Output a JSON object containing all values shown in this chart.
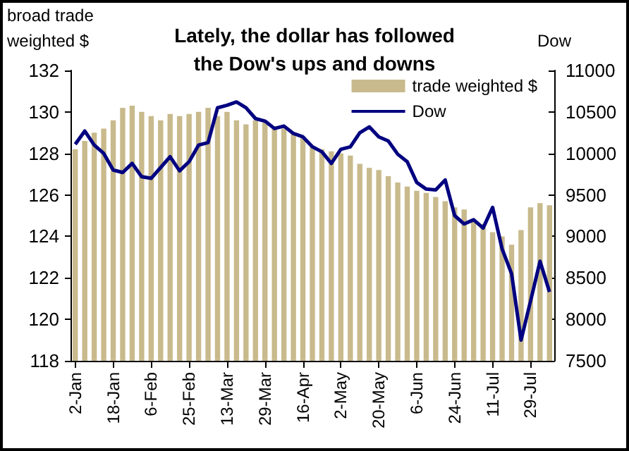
{
  "chart_data": {
    "type": "bar",
    "title": "Lately, the dollar has followed\nthe Dow's ups and downs",
    "ylabel": "broad trade\nweighted $",
    "y2label": "Dow",
    "categories": [
      "2-Jan",
      null,
      null,
      null,
      "18-Jan",
      null,
      null,
      null,
      "6-Feb",
      null,
      null,
      null,
      "25-Feb",
      null,
      null,
      null,
      "13-Mar",
      null,
      null,
      null,
      "29-Mar",
      null,
      null,
      null,
      "16-Apr",
      null,
      null,
      null,
      "2-May",
      null,
      null,
      null,
      "20-May",
      null,
      null,
      null,
      "6-Jun",
      null,
      null,
      null,
      "24-Jun",
      null,
      null,
      null,
      "11-Jul",
      null,
      null,
      null,
      "29-Jul",
      null,
      null
    ],
    "series": [
      {
        "name": "trade weighted $",
        "color": "#c8ba8c",
        "values": [
          128.2,
          128.6,
          129.0,
          129.2,
          129.6,
          130.2,
          130.3,
          130.0,
          129.8,
          129.6,
          129.9,
          129.8,
          129.9,
          130.0,
          130.2,
          129.8,
          130.0,
          129.6,
          129.4,
          129.6,
          129.5,
          129.3,
          129.2,
          129.0,
          128.8,
          128.3,
          128.2,
          128.1,
          128.0,
          127.9,
          127.5,
          127.3,
          127.2,
          126.9,
          126.6,
          126.4,
          126.2,
          126.1,
          125.9,
          125.7,
          125.4,
          125.3,
          124.8,
          124.6,
          124.2,
          124.0,
          123.6,
          124.3,
          125.4,
          125.6,
          125.5
        ]
      },
      {
        "name": "Dow",
        "type": "line",
        "axis": "y2",
        "color": "#000080",
        "values": [
          10110,
          10270,
          10100,
          10000,
          9800,
          9770,
          9880,
          9720,
          9700,
          9830,
          9960,
          9790,
          9900,
          10100,
          10130,
          10550,
          10580,
          10620,
          10550,
          10420,
          10390,
          10300,
          10330,
          10240,
          10200,
          10080,
          10020,
          9880,
          10050,
          10080,
          10250,
          10320,
          10200,
          10150,
          9990,
          9900,
          9650,
          9570,
          9560,
          9680,
          9250,
          9150,
          9200,
          9100,
          9350,
          8850,
          8550,
          7750,
          8220,
          8700,
          8330
        ]
      }
    ],
    "ylim": [
      118,
      132
    ],
    "yticks": [
      118,
      120,
      122,
      124,
      126,
      128,
      130,
      132
    ],
    "y2lim": [
      7500,
      11000
    ],
    "y2ticks": [
      7500,
      8000,
      8500,
      9000,
      9500,
      10000,
      10500,
      11000
    ],
    "grid": false,
    "legend": "top right",
    "marker": "none",
    "line_style": "solid"
  }
}
